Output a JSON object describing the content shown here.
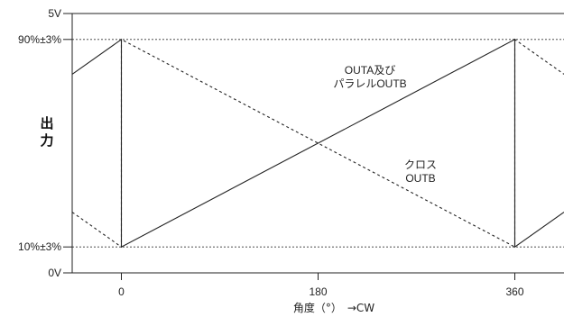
{
  "chart_data": {
    "type": "line",
    "ylabel": "出力",
    "xlabel": "角度（°）　→CW",
    "xlim": [
      -45,
      405
    ],
    "ylim": [
      0,
      5
    ],
    "x_ticks": [
      0,
      180,
      360
    ],
    "x_tick_labels": [
      "0",
      "180",
      "360"
    ],
    "y_ticks": [
      0,
      0.5,
      4.5,
      5
    ],
    "y_tick_labels": [
      "0V",
      "10%±3%",
      "90%±3%",
      "5V"
    ],
    "reference_lines": [
      {
        "y": 4.5,
        "style": "dotted"
      },
      {
        "y": 0.5,
        "style": "dotted"
      }
    ],
    "series": [
      {
        "name": "OUTA及び\nパラレルOUTB",
        "style": "solid",
        "points": [
          [
            -45,
            3.83
          ],
          [
            0,
            4.5
          ],
          [
            0,
            0.5
          ],
          [
            360,
            4.5
          ],
          [
            360,
            0.5
          ],
          [
            405,
            1.17
          ]
        ]
      },
      {
        "name": "クロス\nOUTB",
        "style": "dashed",
        "points": [
          [
            -45,
            1.17
          ],
          [
            0,
            0.5
          ],
          [
            0,
            4.5
          ],
          [
            360,
            0.5
          ],
          [
            360,
            4.5
          ],
          [
            405,
            3.83
          ]
        ]
      }
    ],
    "annotations": [
      {
        "lines": [
          "OUTA及び",
          "パラレルOUTB"
        ]
      },
      {
        "lines": [
          "クロス",
          "OUTB"
        ]
      }
    ]
  }
}
